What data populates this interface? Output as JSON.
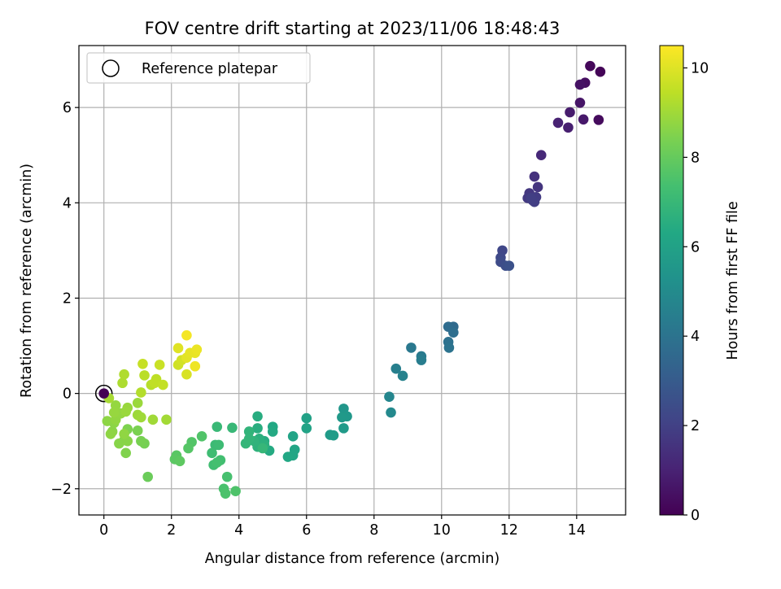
{
  "chart_data": {
    "type": "scatter",
    "title": "FOV centre drift starting at 2023/11/06 18:48:43",
    "xlabel": "Angular distance from reference (arcmin)",
    "ylabel": "Rotation from reference (arcmin)",
    "xlim": [
      -0.74,
      15.45
    ],
    "ylim": [
      -2.55,
      7.3
    ],
    "xticks": [
      0,
      2,
      4,
      6,
      8,
      10,
      12,
      14
    ],
    "yticks": [
      -2,
      0,
      2,
      4,
      6
    ],
    "grid": true,
    "legend": {
      "position": "top-left",
      "entries": [
        "Reference platepar"
      ]
    },
    "reference_point": {
      "x": 0,
      "y": 0,
      "label": "Reference platepar"
    },
    "colorbar": {
      "label": "Hours from first FF file",
      "range": [
        0,
        10.5
      ],
      "ticks": [
        0,
        2,
        4,
        6,
        8,
        10
      ],
      "colormap": "viridis"
    },
    "points": [
      [
        14.7,
        6.75,
        0.1
      ],
      [
        14.4,
        6.87,
        0.2
      ],
      [
        14.65,
        5.74,
        0.3
      ],
      [
        14.25,
        6.52,
        0.4
      ],
      [
        14.1,
        6.48,
        0.5
      ],
      [
        14.1,
        6.1,
        0.6
      ],
      [
        14.2,
        5.75,
        0.7
      ],
      [
        13.8,
        5.9,
        0.8
      ],
      [
        13.75,
        5.58,
        0.9
      ],
      [
        13.45,
        5.68,
        1.0
      ],
      [
        12.95,
        5.0,
        1.2
      ],
      [
        12.75,
        4.55,
        1.5
      ],
      [
        12.85,
        4.33,
        1.6
      ],
      [
        12.6,
        4.2,
        1.7
      ],
      [
        12.55,
        4.1,
        1.75
      ],
      [
        12.7,
        4.05,
        1.8
      ],
      [
        12.8,
        4.12,
        1.85
      ],
      [
        12.75,
        4.02,
        1.9
      ],
      [
        12.65,
        4.1,
        1.95
      ],
      [
        11.8,
        3.0,
        2.2
      ],
      [
        11.75,
        2.85,
        2.3
      ],
      [
        11.75,
        2.76,
        2.4
      ],
      [
        11.9,
        2.68,
        2.5
      ],
      [
        12.0,
        2.68,
        2.6
      ],
      [
        10.35,
        1.4,
        3.6
      ],
      [
        10.2,
        1.4,
        3.7
      ],
      [
        10.35,
        1.28,
        3.8
      ],
      [
        10.2,
        1.08,
        3.9
      ],
      [
        10.22,
        0.96,
        4.0
      ],
      [
        9.1,
        0.96,
        4.2
      ],
      [
        9.4,
        0.78,
        4.3
      ],
      [
        9.4,
        0.7,
        4.4
      ],
      [
        8.65,
        0.52,
        4.5
      ],
      [
        8.85,
        0.37,
        4.6
      ],
      [
        8.45,
        -0.07,
        4.8
      ],
      [
        8.5,
        -0.4,
        4.9
      ],
      [
        7.1,
        -0.32,
        5.5
      ],
      [
        7.2,
        -0.48,
        5.55
      ],
      [
        7.05,
        -0.5,
        5.6
      ],
      [
        7.1,
        -0.73,
        5.65
      ],
      [
        6.7,
        -0.87,
        5.7
      ],
      [
        6.8,
        -0.88,
        5.75
      ],
      [
        6.0,
        -0.52,
        6.0
      ],
      [
        6.0,
        -0.73,
        6.05
      ],
      [
        5.6,
        -0.9,
        6.1
      ],
      [
        5.65,
        -1.18,
        6.15
      ],
      [
        5.6,
        -1.3,
        6.2
      ],
      [
        5.45,
        -1.33,
        6.25
      ],
      [
        5.0,
        -0.7,
        6.3
      ],
      [
        5.0,
        -0.8,
        6.35
      ],
      [
        4.9,
        -1.2,
        6.4
      ],
      [
        4.75,
        -1.0,
        6.45
      ],
      [
        4.55,
        -0.48,
        6.5
      ],
      [
        4.55,
        -0.73,
        6.55
      ],
      [
        4.6,
        -0.95,
        6.6
      ],
      [
        4.75,
        -1.08,
        6.65
      ],
      [
        4.55,
        -1.12,
        6.7
      ],
      [
        4.45,
        -1.0,
        6.75
      ],
      [
        4.3,
        -0.8,
        6.8
      ],
      [
        4.3,
        -0.95,
        6.85
      ],
      [
        4.2,
        -1.05,
        6.9
      ],
      [
        4.7,
        -1.15,
        6.95
      ],
      [
        3.8,
        -0.72,
        7.0
      ],
      [
        3.35,
        -0.7,
        7.05
      ],
      [
        3.3,
        -1.08,
        7.1
      ],
      [
        3.4,
        -1.08,
        7.15
      ],
      [
        3.2,
        -1.25,
        7.2
      ],
      [
        3.25,
        -1.5,
        7.25
      ],
      [
        3.45,
        -1.4,
        7.3
      ],
      [
        3.35,
        -1.45,
        7.35
      ],
      [
        3.65,
        -1.75,
        7.4
      ],
      [
        3.55,
        -2.0,
        7.45
      ],
      [
        3.6,
        -2.1,
        7.5
      ],
      [
        3.9,
        -2.05,
        7.55
      ],
      [
        2.9,
        -0.9,
        7.6
      ],
      [
        2.6,
        -1.02,
        7.65
      ],
      [
        2.5,
        -1.15,
        7.7
      ],
      [
        2.15,
        -1.3,
        7.75
      ],
      [
        2.1,
        -1.38,
        7.8
      ],
      [
        2.25,
        -1.42,
        7.85
      ],
      [
        1.3,
        -1.75,
        8.1
      ],
      [
        1.2,
        -1.05,
        8.3
      ],
      [
        1.1,
        -1.0,
        8.35
      ],
      [
        1.0,
        -0.78,
        8.4
      ],
      [
        0.7,
        -0.75,
        8.45
      ],
      [
        0.65,
        -1.25,
        8.5
      ],
      [
        0.6,
        -0.98,
        8.55
      ],
      [
        0.45,
        -1.05,
        8.6
      ],
      [
        0.7,
        -1.0,
        8.62
      ],
      [
        0.25,
        -0.8,
        8.65
      ],
      [
        0.3,
        -0.62,
        8.68
      ],
      [
        0.1,
        -0.58,
        8.7
      ],
      [
        0.2,
        -0.85,
        8.72
      ],
      [
        0.6,
        -0.85,
        8.75
      ],
      [
        0.35,
        -0.55,
        8.78
      ],
      [
        0.5,
        -0.42,
        8.8
      ],
      [
        0.35,
        -0.25,
        8.82
      ],
      [
        0.3,
        -0.4,
        8.85
      ],
      [
        0.7,
        -0.3,
        8.88
      ],
      [
        0.65,
        -0.38,
        8.9
      ],
      [
        1.0,
        -0.2,
        8.92
      ],
      [
        1.0,
        -0.45,
        8.95
      ],
      [
        1.1,
        -0.5,
        8.98
      ],
      [
        1.45,
        -0.55,
        9.0
      ],
      [
        1.85,
        -0.55,
        9.05
      ],
      [
        0.15,
        -0.1,
        9.1
      ],
      [
        0.55,
        0.22,
        9.2
      ],
      [
        0.6,
        0.4,
        9.25
      ],
      [
        1.1,
        0.02,
        9.3
      ],
      [
        1.4,
        0.18,
        9.35
      ],
      [
        1.2,
        0.38,
        9.4
      ],
      [
        1.55,
        0.3,
        9.45
      ],
      [
        1.5,
        0.22,
        9.5
      ],
      [
        1.75,
        0.18,
        9.55
      ],
      [
        1.15,
        0.62,
        9.6
      ],
      [
        1.65,
        0.6,
        9.65
      ],
      [
        2.2,
        0.6,
        9.75
      ],
      [
        2.3,
        0.7,
        9.8
      ],
      [
        2.45,
        0.4,
        9.9
      ],
      [
        2.2,
        0.95,
        10.0
      ],
      [
        2.45,
        0.75,
        10.05
      ],
      [
        2.55,
        0.85,
        10.1
      ],
      [
        2.7,
        0.85,
        10.15
      ],
      [
        2.75,
        0.92,
        10.2
      ],
      [
        2.7,
        0.57,
        10.25
      ],
      [
        2.45,
        1.22,
        10.35
      ],
      [
        0.0,
        0.0,
        0.0
      ]
    ]
  }
}
